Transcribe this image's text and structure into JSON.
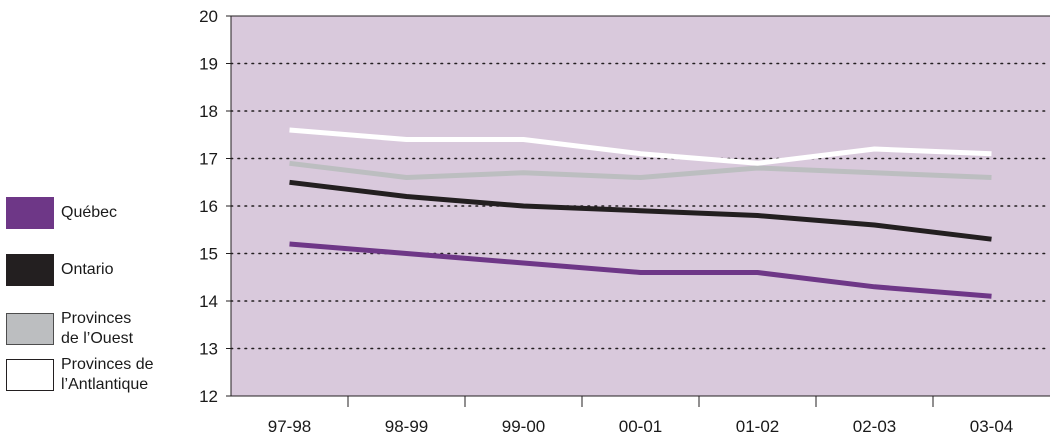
{
  "chart_data": {
    "type": "line",
    "title": "",
    "xlabel": "",
    "ylabel": "",
    "categories": [
      "97-98",
      "98-99",
      "99-00",
      "00-01",
      "01-02",
      "02-03",
      "03-04"
    ],
    "ylim": [
      12,
      20
    ],
    "yticks": [
      12,
      13,
      14,
      15,
      16,
      17,
      18,
      19,
      20
    ],
    "grid": "horizontal dotted",
    "plot_background": "#d9c9dc",
    "legend_position": "left",
    "series": [
      {
        "name": "Québec",
        "color": "#6e3787",
        "swatch_border": "#6e3787",
        "values": [
          15.2,
          15.0,
          14.8,
          14.6,
          14.6,
          14.3,
          14.1
        ]
      },
      {
        "name": "Ontario",
        "color": "#231f20",
        "swatch_border": "#231f20",
        "values": [
          16.5,
          16.2,
          16.0,
          15.9,
          15.8,
          15.6,
          15.3
        ]
      },
      {
        "name": "Provinces\nde l’Ouest",
        "color": "#bcbec0",
        "swatch_border": "#4d4d4d",
        "values": [
          16.9,
          16.6,
          16.7,
          16.6,
          16.8,
          16.7,
          16.6
        ]
      },
      {
        "name": "Provinces de\nl’Antlantique",
        "color": "#ffffff",
        "swatch_border": "#231f20",
        "values": [
          17.6,
          17.4,
          17.4,
          17.1,
          16.9,
          17.2,
          17.1
        ]
      }
    ]
  }
}
